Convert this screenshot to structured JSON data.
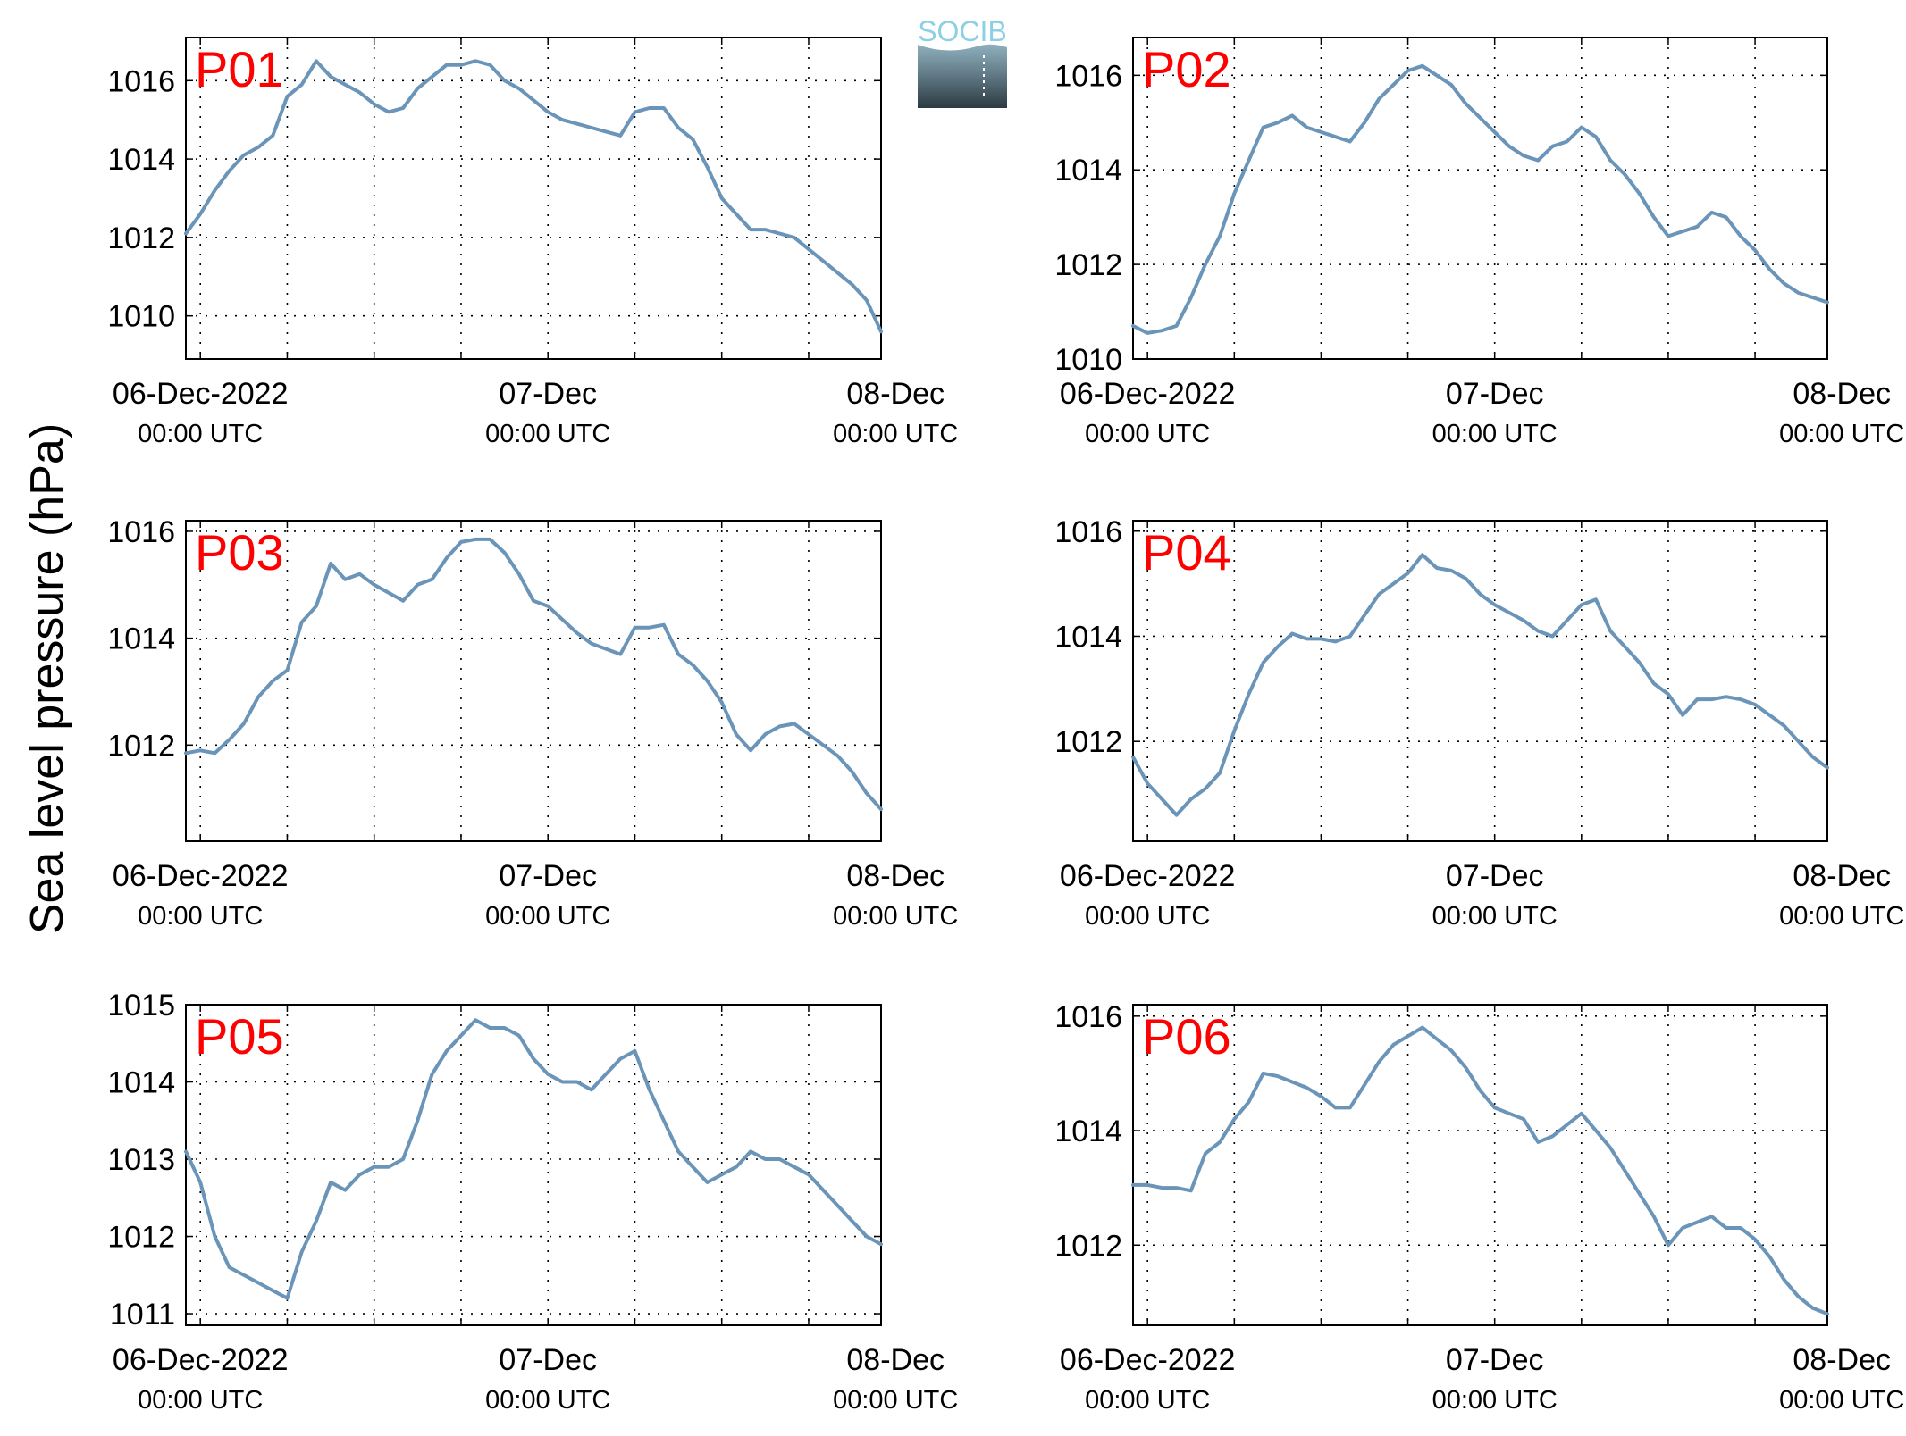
{
  "figure": {
    "ylabel": "Sea level pressure (hPa)",
    "logo_text": "SOCIB",
    "colors": {
      "line": "#6a95b9",
      "panel_label": "#ff0000",
      "axis": "#000000",
      "grid": "#000000"
    },
    "x_ticks": [
      {
        "main": "06-Dec-2022",
        "sub": "00:00 UTC"
      },
      {
        "main": "07-Dec",
        "sub": "00:00 UTC"
      },
      {
        "main": "08-Dec",
        "sub": "00:00 UTC"
      }
    ]
  },
  "chart_data": [
    {
      "type": "line",
      "title": "P01",
      "xlim_hours": [
        -1,
        47
      ],
      "ylim": [
        1008.9,
        1017.1
      ],
      "yticks": [
        "1010",
        "1012",
        "1014",
        "1016"
      ],
      "x_hours": [
        -1,
        0,
        1,
        2,
        3,
        4,
        5,
        6,
        7,
        8,
        9,
        10,
        11,
        12,
        13,
        14,
        15,
        16,
        17,
        18,
        19,
        20,
        21,
        22,
        23,
        24,
        25,
        26,
        27,
        28,
        29,
        30,
        31,
        32,
        33,
        34,
        35,
        36,
        37,
        38,
        39,
        40,
        41,
        42,
        43,
        44,
        45,
        46,
        47
      ],
      "values": [
        1012.1,
        1012.6,
        1013.2,
        1013.7,
        1014.1,
        1014.3,
        1014.6,
        1015.6,
        1015.9,
        1016.5,
        1016.1,
        1015.9,
        1015.7,
        1015.4,
        1015.2,
        1015.3,
        1015.8,
        1016.1,
        1016.4,
        1016.4,
        1016.5,
        1016.4,
        1016.0,
        1015.8,
        1015.5,
        1015.2,
        1015.0,
        1014.9,
        1014.8,
        1014.7,
        1014.6,
        1015.2,
        1015.3,
        1015.3,
        1014.8,
        1014.5,
        1013.8,
        1013.0,
        1012.6,
        1012.2,
        1012.2,
        1012.1,
        1012.0,
        1011.7,
        1011.4,
        1011.1,
        1010.8,
        1010.4,
        1009.6
      ]
    },
    {
      "type": "line",
      "title": "P02",
      "xlim_hours": [
        -1,
        47
      ],
      "ylim": [
        1010.0,
        1016.8
      ],
      "yticks": [
        "1010",
        "1012",
        "1014",
        "1016"
      ],
      "x_hours": [
        -1,
        0,
        1,
        2,
        3,
        4,
        5,
        6,
        7,
        8,
        9,
        10,
        11,
        12,
        13,
        14,
        15,
        16,
        17,
        18,
        19,
        20,
        21,
        22,
        23,
        24,
        25,
        26,
        27,
        28,
        29,
        30,
        31,
        32,
        33,
        34,
        35,
        36,
        37,
        38,
        39,
        40,
        41,
        42,
        43,
        44,
        45,
        46,
        47
      ],
      "values": [
        1010.7,
        1010.55,
        1010.6,
        1010.7,
        1011.3,
        1012.0,
        1012.6,
        1013.5,
        1014.2,
        1014.9,
        1015.0,
        1015.15,
        1014.9,
        1014.8,
        1014.7,
        1014.6,
        1015.0,
        1015.5,
        1015.8,
        1016.1,
        1016.2,
        1016.0,
        1015.8,
        1015.4,
        1015.1,
        1014.8,
        1014.5,
        1014.3,
        1014.2,
        1014.5,
        1014.6,
        1014.9,
        1014.7,
        1014.2,
        1013.9,
        1013.5,
        1013.0,
        1012.6,
        1012.7,
        1012.8,
        1013.1,
        1013.0,
        1012.6,
        1012.3,
        1011.9,
        1011.6,
        1011.4,
        1011.3,
        1011.2
      ]
    },
    {
      "type": "line",
      "title": "P03",
      "xlim_hours": [
        -1,
        47
      ],
      "ylim": [
        1010.2,
        1016.2
      ],
      "yticks": [
        "1012",
        "1014",
        "1016"
      ],
      "x_hours": [
        -1,
        0,
        1,
        2,
        3,
        4,
        5,
        6,
        7,
        8,
        9,
        10,
        11,
        12,
        13,
        14,
        15,
        16,
        17,
        18,
        19,
        20,
        21,
        22,
        23,
        24,
        25,
        26,
        27,
        28,
        29,
        30,
        31,
        32,
        33,
        34,
        35,
        36,
        37,
        38,
        39,
        40,
        41,
        42,
        43,
        44,
        45,
        46,
        47
      ],
      "values": [
        1011.85,
        1011.9,
        1011.85,
        1012.1,
        1012.4,
        1012.9,
        1013.2,
        1013.4,
        1014.3,
        1014.6,
        1015.4,
        1015.1,
        1015.2,
        1015.0,
        1014.85,
        1014.7,
        1015.0,
        1015.1,
        1015.5,
        1015.8,
        1015.85,
        1015.85,
        1015.6,
        1015.2,
        1014.7,
        1014.6,
        1014.35,
        1014.1,
        1013.9,
        1013.8,
        1013.7,
        1014.2,
        1014.2,
        1014.25,
        1013.7,
        1013.5,
        1013.2,
        1012.8,
        1012.2,
        1011.9,
        1012.2,
        1012.35,
        1012.4,
        1012.2,
        1012.0,
        1011.8,
        1011.5,
        1011.1,
        1010.8
      ]
    },
    {
      "type": "line",
      "title": "P04",
      "xlim_hours": [
        -1,
        47
      ],
      "ylim": [
        1010.1,
        1016.2
      ],
      "yticks": [
        "1012",
        "1014",
        "1016"
      ],
      "x_hours": [
        -1,
        0,
        1,
        2,
        3,
        4,
        5,
        6,
        7,
        8,
        9,
        10,
        11,
        12,
        13,
        14,
        15,
        16,
        17,
        18,
        19,
        20,
        21,
        22,
        23,
        24,
        25,
        26,
        27,
        28,
        29,
        30,
        31,
        32,
        33,
        34,
        35,
        36,
        37,
        38,
        39,
        40,
        41,
        42,
        43,
        44,
        45,
        46,
        47
      ],
      "values": [
        1011.7,
        1011.2,
        1010.9,
        1010.6,
        1010.9,
        1011.1,
        1011.4,
        1012.2,
        1012.9,
        1013.5,
        1013.8,
        1014.05,
        1013.95,
        1013.95,
        1013.9,
        1014.0,
        1014.4,
        1014.8,
        1015.0,
        1015.2,
        1015.55,
        1015.3,
        1015.25,
        1015.1,
        1014.8,
        1014.6,
        1014.45,
        1014.3,
        1014.1,
        1014.0,
        1014.3,
        1014.6,
        1014.7,
        1014.1,
        1013.8,
        1013.5,
        1013.1,
        1012.9,
        1012.5,
        1012.8,
        1012.8,
        1012.85,
        1012.8,
        1012.7,
        1012.5,
        1012.3,
        1012.0,
        1011.7,
        1011.5
      ]
    },
    {
      "type": "line",
      "title": "P05",
      "xlim_hours": [
        -1,
        47
      ],
      "ylim": [
        1010.85,
        1015.0
      ],
      "yticks": [
        "1011",
        "1012",
        "1013",
        "1014",
        "1015"
      ],
      "x_hours": [
        -1,
        0,
        1,
        2,
        3,
        4,
        5,
        6,
        7,
        8,
        9,
        10,
        11,
        12,
        13,
        14,
        15,
        16,
        17,
        18,
        19,
        20,
        21,
        22,
        23,
        24,
        25,
        26,
        27,
        28,
        29,
        30,
        31,
        32,
        33,
        34,
        35,
        36,
        37,
        38,
        39,
        40,
        41,
        42,
        43,
        44,
        45,
        46,
        47
      ],
      "values": [
        1013.1,
        1012.7,
        1012.0,
        1011.6,
        1011.5,
        1011.4,
        1011.3,
        1011.2,
        1011.8,
        1012.2,
        1012.7,
        1012.6,
        1012.8,
        1012.9,
        1012.9,
        1013.0,
        1013.5,
        1014.1,
        1014.4,
        1014.6,
        1014.8,
        1014.7,
        1014.7,
        1014.6,
        1014.3,
        1014.1,
        1014.0,
        1014.0,
        1013.9,
        1014.1,
        1014.3,
        1014.4,
        1013.9,
        1013.5,
        1013.1,
        1012.9,
        1012.7,
        1012.8,
        1012.9,
        1013.1,
        1013.0,
        1013.0,
        1012.9,
        1012.8,
        1012.6,
        1012.4,
        1012.2,
        1012.0,
        1011.9
      ]
    },
    {
      "type": "line",
      "title": "P06",
      "xlim_hours": [
        -1,
        47
      ],
      "ylim": [
        1010.6,
        1016.2
      ],
      "yticks": [
        "1012",
        "1014",
        "1016"
      ],
      "x_hours": [
        -1,
        0,
        1,
        2,
        3,
        4,
        5,
        6,
        7,
        8,
        9,
        10,
        11,
        12,
        13,
        14,
        15,
        16,
        17,
        18,
        19,
        20,
        21,
        22,
        23,
        24,
        25,
        26,
        27,
        28,
        29,
        30,
        31,
        32,
        33,
        34,
        35,
        36,
        37,
        38,
        39,
        40,
        41,
        42,
        43,
        44,
        45,
        46,
        47
      ],
      "values": [
        1013.05,
        1013.05,
        1013.0,
        1013.0,
        1012.95,
        1013.6,
        1013.8,
        1014.2,
        1014.5,
        1015.0,
        1014.95,
        1014.85,
        1014.75,
        1014.6,
        1014.4,
        1014.4,
        1014.8,
        1015.2,
        1015.5,
        1015.65,
        1015.8,
        1015.6,
        1015.4,
        1015.1,
        1014.7,
        1014.4,
        1014.3,
        1014.2,
        1013.8,
        1013.9,
        1014.1,
        1014.3,
        1014.0,
        1013.7,
        1013.3,
        1012.9,
        1012.5,
        1012.0,
        1012.3,
        1012.4,
        1012.5,
        1012.3,
        1012.3,
        1012.1,
        1011.8,
        1011.4,
        1011.1,
        1010.9,
        1010.8
      ]
    }
  ]
}
